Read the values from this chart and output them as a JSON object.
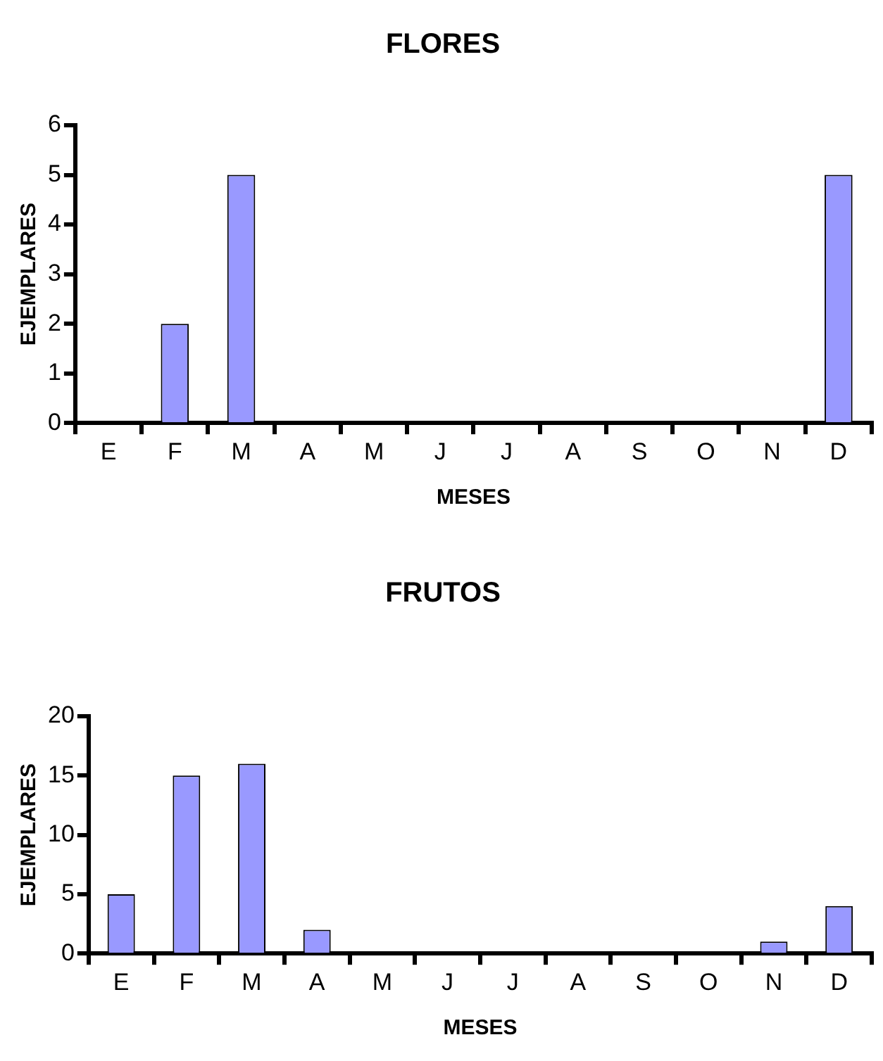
{
  "chart_data": [
    {
      "type": "bar",
      "title": "FLORES",
      "xlabel": "MESES",
      "ylabel": "EJEMPLARES",
      "categories": [
        "E",
        "F",
        "M",
        "A",
        "M",
        "J",
        "J",
        "A",
        "S",
        "O",
        "N",
        "D"
      ],
      "values": [
        0,
        2,
        5,
        0,
        0,
        0,
        0,
        0,
        0,
        0,
        0,
        5
      ],
      "color": "#9999ff",
      "ylim": [
        0,
        6
      ],
      "yticks": [
        0,
        1,
        2,
        3,
        4,
        5,
        6
      ],
      "grid": false,
      "legend": false
    },
    {
      "type": "bar",
      "title": "FRUTOS",
      "xlabel": "MESES",
      "ylabel": "EJEMPLARES",
      "categories": [
        "E",
        "F",
        "M",
        "A",
        "M",
        "J",
        "J",
        "A",
        "S",
        "O",
        "N",
        "D"
      ],
      "values": [
        5,
        15,
        16,
        2,
        0,
        0,
        0,
        0,
        0,
        0,
        1,
        4
      ],
      "color": "#9999ff",
      "ylim": [
        0,
        20
      ],
      "yticks": [
        0,
        5,
        10,
        15,
        20
      ],
      "grid": false,
      "legend": false
    }
  ]
}
